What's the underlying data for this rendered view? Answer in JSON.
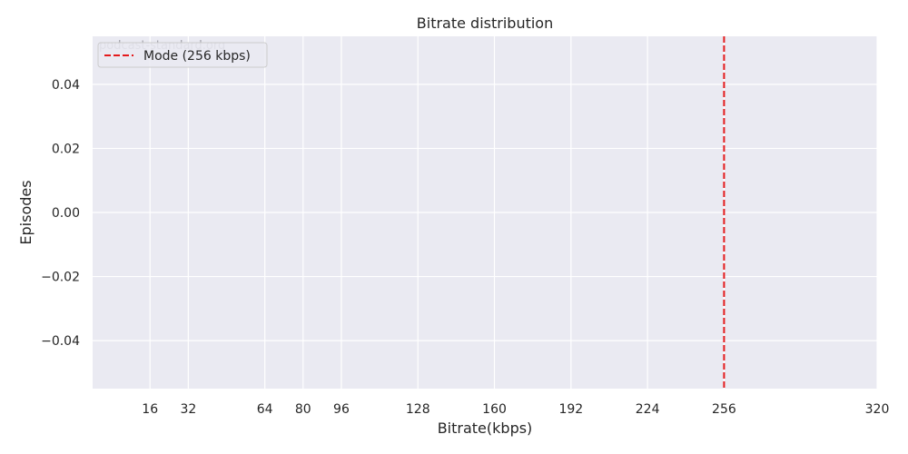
{
  "chart_data": {
    "type": "histogram",
    "title": "Bitrate distribution",
    "xlabel": "Bitrate(kbps)",
    "ylabel": "Episodes",
    "x_ticks": [
      16,
      32,
      64,
      80,
      96,
      128,
      160,
      192,
      224,
      256,
      320
    ],
    "y_ticks": [
      -0.04,
      -0.02,
      0.0,
      0.02,
      0.04
    ],
    "y_tick_labels": [
      "−0.04",
      "−0.02",
      "0.00",
      "0.02",
      "0.04"
    ],
    "xlim": [
      -8,
      320
    ],
    "ylim": [
      -0.055,
      0.055
    ],
    "values": [],
    "mode_line": {
      "x": 256,
      "label": "Mode (256 kbps)",
      "color": "#e41a1c",
      "style": "dashed"
    },
    "watermark": "podcast-standard.org",
    "grid": true,
    "legend_position": "upper-left",
    "colors": {
      "background": "#eaeaf2",
      "grid": "#ffffff",
      "mode_line": "#e41a1c"
    }
  }
}
